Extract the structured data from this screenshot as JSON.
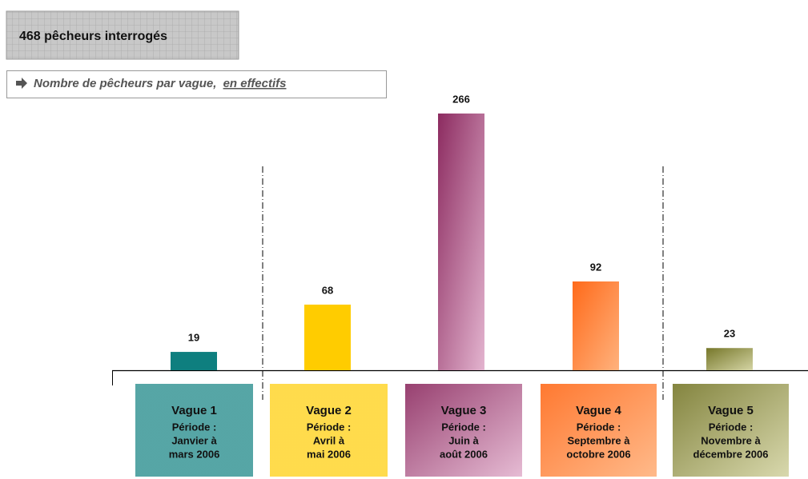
{
  "chart_data": {
    "type": "bar",
    "title": "468 pêcheurs interrogés",
    "subtitle": "Nombre de pêcheurs par vague,",
    "subtitle_emphasis": "en effectifs",
    "categories": [
      "Vague 1",
      "Vague 2",
      "Vague 3",
      "Vague 4",
      "Vague 5"
    ],
    "period_lines": [
      [
        "Période :",
        "Janvier à",
        "mars 2006"
      ],
      [
        "Période :",
        "Avril à",
        "mai 2006"
      ],
      [
        "Période :",
        "Juin à",
        "août 2006"
      ],
      [
        "Période :",
        "Septembre à",
        "octobre 2006"
      ],
      [
        "Période :",
        "Novembre à",
        "décembre 2006"
      ]
    ],
    "values": [
      19,
      68,
      266,
      92,
      23
    ],
    "colors": [
      "#0e7f7f",
      "#ffcc00",
      "#8c2b60",
      "#ff6a1a",
      "#76772a"
    ]
  }
}
